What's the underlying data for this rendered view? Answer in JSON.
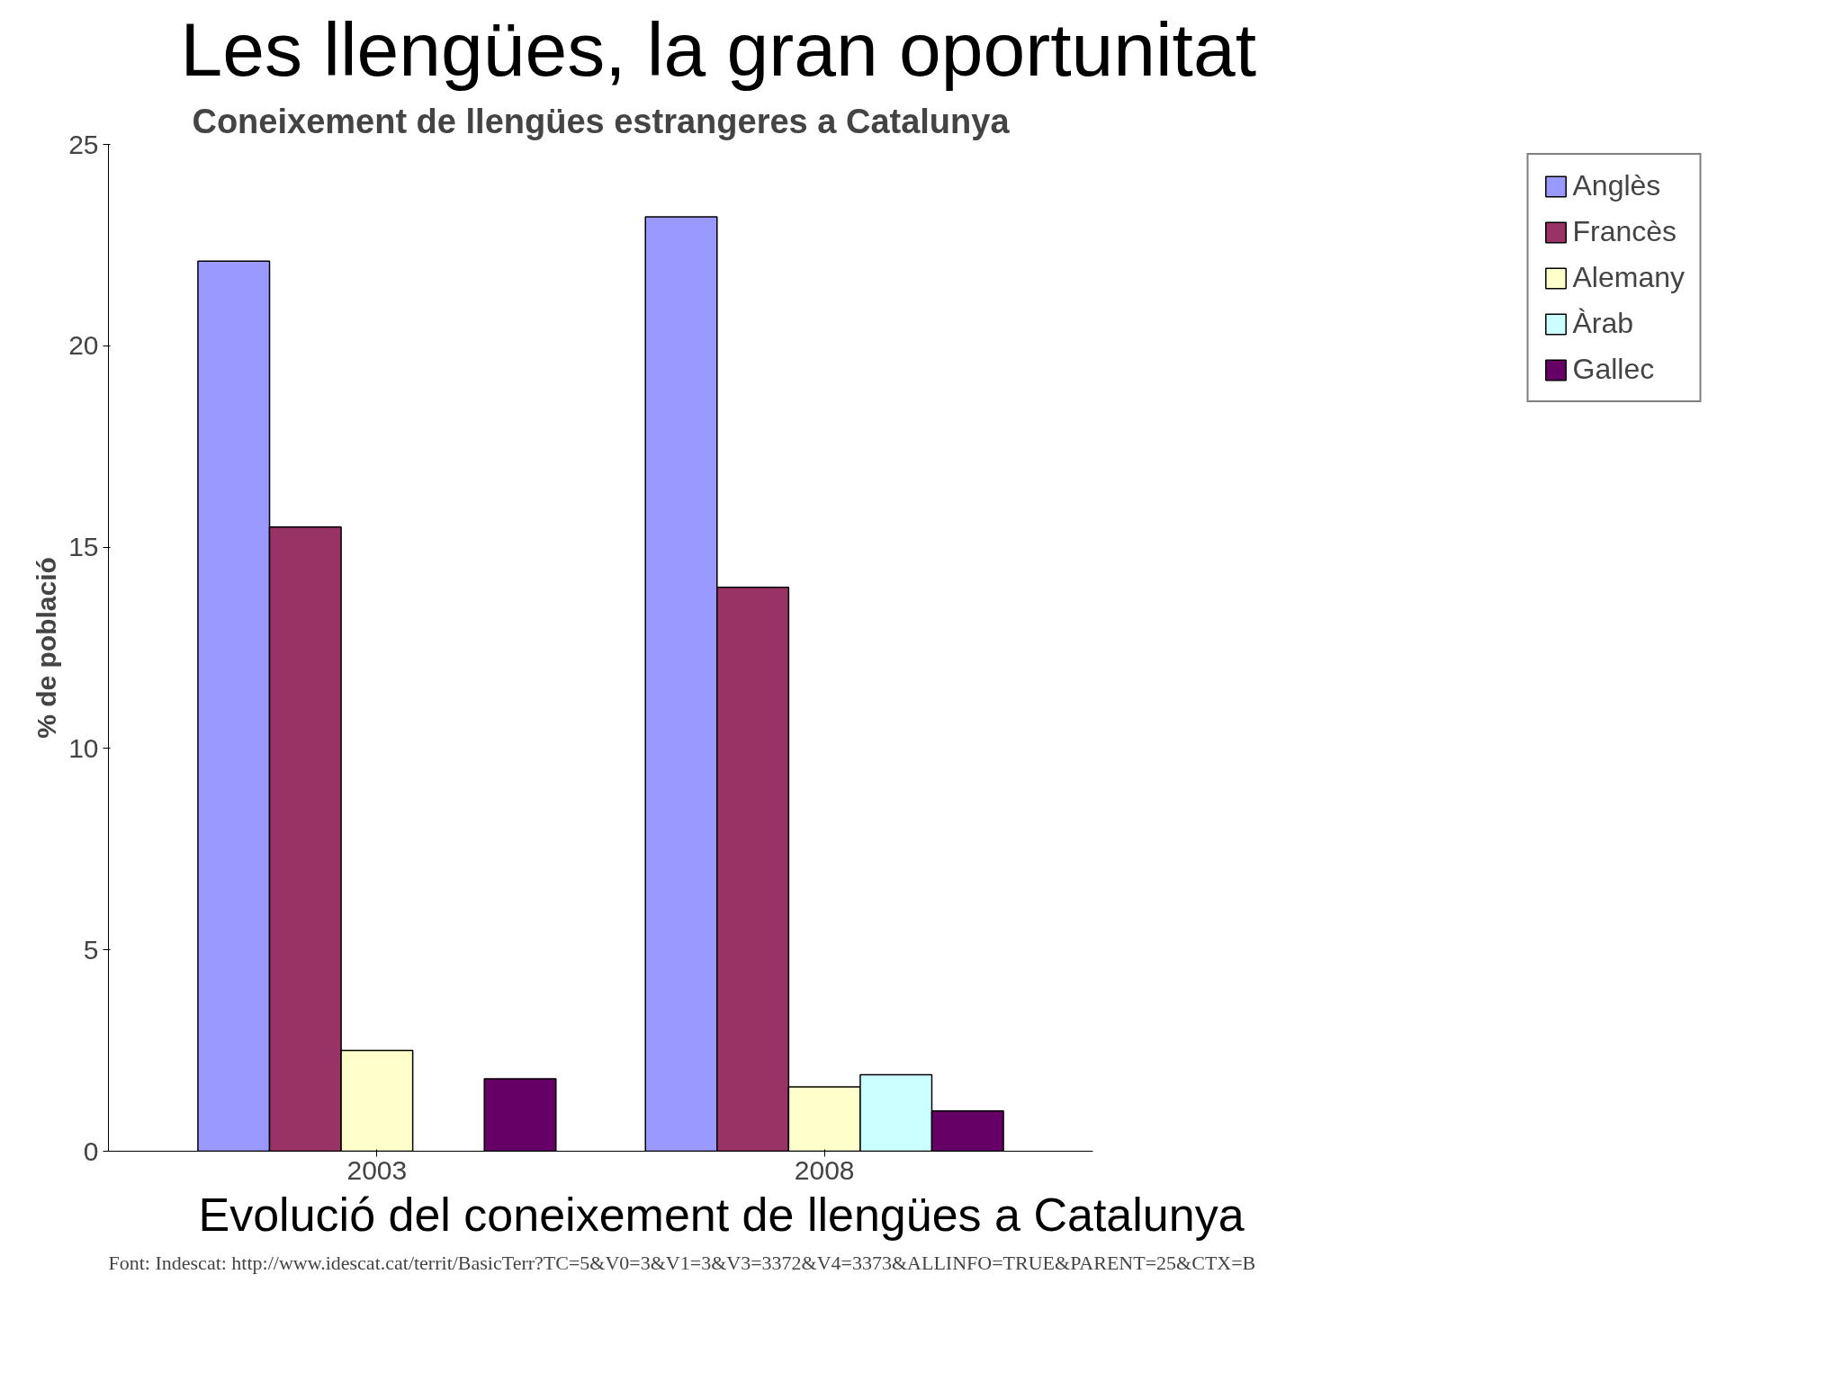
{
  "chart_data": {
    "type": "bar",
    "title": "Les llengües, la gran oportunitat",
    "subtitle": "Coneixement de llengües estrangeres a Catalunya",
    "ylabel": "% de població",
    "categories": [
      "2003",
      "2008"
    ],
    "series": [
      {
        "name": "Anglès",
        "color": "#9999ff",
        "values": [
          22.1,
          23.2
        ]
      },
      {
        "name": "Francès",
        "color": "#993366",
        "values": [
          15.5,
          14.0
        ]
      },
      {
        "name": "Alemany",
        "color": "#ffffcc",
        "values": [
          2.5,
          1.6
        ]
      },
      {
        "name": "Àrab",
        "color": "#ccffff",
        "values": [
          null,
          1.9
        ]
      },
      {
        "name": "Gallec",
        "color": "#660066",
        "values": [
          1.8,
          1.0
        ]
      }
    ],
    "ylim": [
      0,
      25
    ],
    "yticks": [
      0,
      5,
      10,
      15,
      20,
      25
    ],
    "grid": false,
    "legend": "right",
    "annotations": [
      "Evolució del coneixement de llengües a Catalunya",
      "Font: Indescat: http://www.idescat.cat/territ/BasicTerr?TC=5&V0=3&V1=3&V3=3372&V4=3373&ALLINFO=TRUE&PARENT=25&CTX=B"
    ]
  }
}
